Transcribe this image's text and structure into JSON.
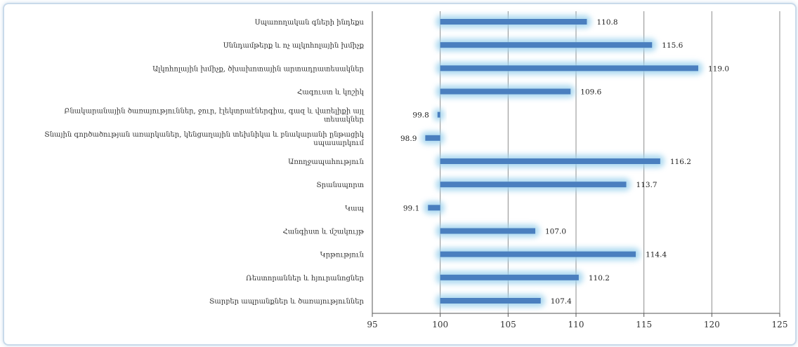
{
  "chart_data": {
    "type": "bar",
    "orientation": "horizontal",
    "categories": [
      [
        "Սպառողական գների ինդեքս"
      ],
      [
        "Սննդամթերք և ոչ ալկոհոլային խմիչք"
      ],
      [
        "Ալկոհոլային խմիչք, ծխախոտային արտադրատեսակներ"
      ],
      [
        "Հագուստ և կոշիկ"
      ],
      [
        "Բնակարանային ծառայություններ, ջուր, էլեկտրաէներգիա, գազ և վառելիքի այլ",
        "տեսակներ"
      ],
      [
        "Տնային գործածության առարկաներ, կենցաղային տեխնիկա և բնակարանի ընթացիկ",
        "սպասարկում"
      ],
      [
        "Առողջապահություն"
      ],
      [
        "Տրանսպորտ"
      ],
      [
        "Կապ"
      ],
      [
        "Հանգիստ և մշակույթ"
      ],
      [
        "Կրթություն"
      ],
      [
        "Ռեստորաններ և հյուրանոցներ"
      ],
      [
        "Տարբեր ապրանքներ և ծառայություններ"
      ]
    ],
    "values": [
      110.8,
      115.6,
      119.0,
      109.6,
      99.8,
      98.9,
      116.2,
      113.7,
      99.1,
      107.0,
      114.4,
      110.2,
      107.4
    ],
    "value_labels": [
      "110.8",
      "115.6",
      "119.0",
      "109.6",
      "99.8",
      "98.9",
      "116.2",
      "113.7",
      "99.1",
      "107.0",
      "114.4",
      "110.2",
      "107.4"
    ],
    "x_ticks": [
      "95",
      "100",
      "105",
      "110",
      "115",
      "120",
      "125"
    ],
    "xlim": [
      95,
      125
    ],
    "baseline": 100,
    "grid": true,
    "colors": {
      "bar": "#4a7fbf",
      "glow": "#9fd3ee",
      "grid": "#8c8c8c",
      "axis": "#555555"
    }
  }
}
